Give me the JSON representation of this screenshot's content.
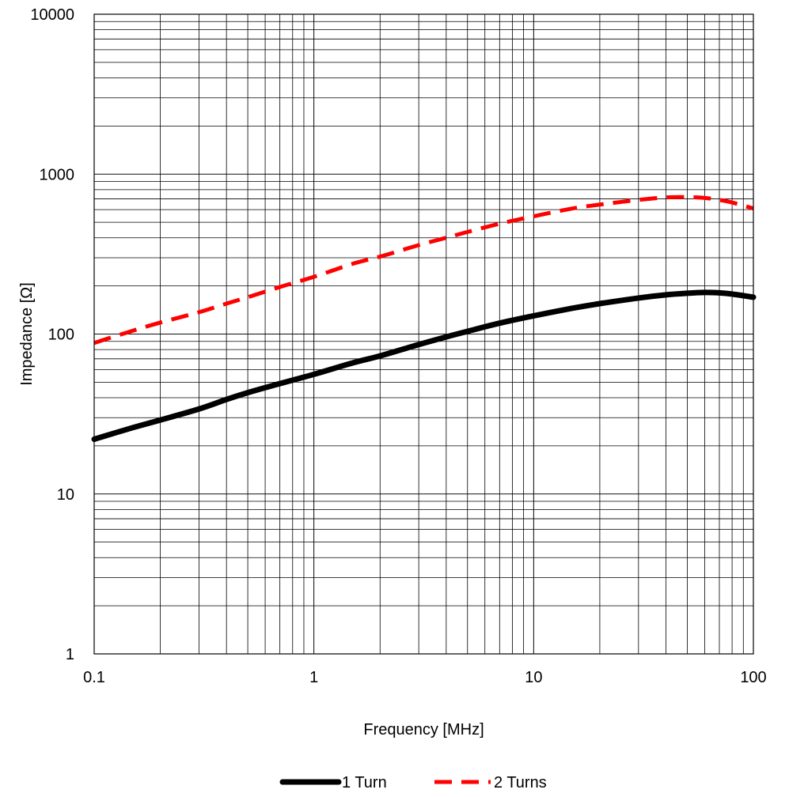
{
  "chart_data": {
    "type": "line",
    "title": "",
    "xlabel": "Frequency [MHz]",
    "ylabel": "Impedance [Ω]",
    "x_scale": "log",
    "y_scale": "log",
    "xlim": [
      0.1,
      100
    ],
    "ylim": [
      1,
      10000
    ],
    "x_ticks": [
      "0.1",
      "1",
      "10",
      "100"
    ],
    "y_ticks": [
      "1",
      "10",
      "100",
      "1000",
      "10000"
    ],
    "grid": true,
    "legend_position": "bottom",
    "series": [
      {
        "name": "1 Turn",
        "color": "#000000",
        "style": "solid",
        "x": [
          0.1,
          0.15,
          0.2,
          0.3,
          0.4,
          0.5,
          0.7,
          1,
          1.5,
          2,
          3,
          4,
          5,
          7,
          10,
          15,
          20,
          30,
          40,
          50,
          60,
          70,
          80,
          100
        ],
        "y": [
          22,
          26,
          29,
          34,
          39,
          43,
          49,
          56,
          66,
          73,
          86,
          96,
          104,
          117,
          130,
          145,
          155,
          168,
          176,
          180,
          182,
          181,
          178,
          170
        ]
      },
      {
        "name": "2 Turns",
        "color": "#ff0000",
        "style": "dashed",
        "x": [
          0.1,
          0.15,
          0.2,
          0.3,
          0.4,
          0.5,
          0.7,
          1,
          1.5,
          2,
          3,
          4,
          5,
          7,
          10,
          15,
          20,
          30,
          40,
          50,
          60,
          70,
          80,
          100
        ],
        "y": [
          88,
          105,
          118,
          137,
          155,
          170,
          197,
          228,
          275,
          305,
          360,
          400,
          435,
          490,
          545,
          610,
          645,
          690,
          715,
          718,
          710,
          690,
          665,
          610
        ]
      }
    ]
  }
}
